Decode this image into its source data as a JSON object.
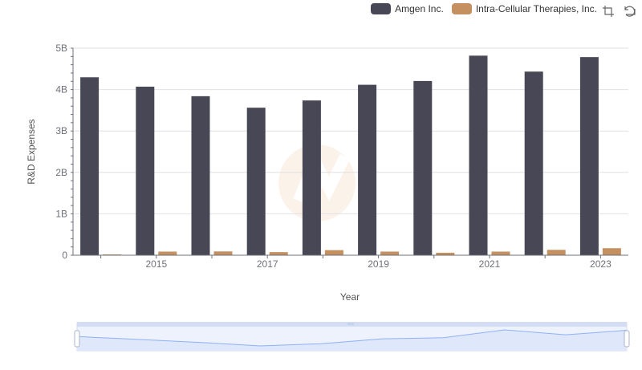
{
  "chart_data": {
    "type": "bar",
    "xlabel": "Year",
    "ylabel": "R&D Expenses",
    "ylim": [
      0,
      5000000000
    ],
    "y_ticks": [
      "0",
      "1B",
      "2B",
      "3B",
      "4B",
      "5B"
    ],
    "x": [
      2014,
      2015,
      2016,
      2017,
      2018,
      2019,
      2020,
      2021,
      2022,
      2023
    ],
    "x_tick_labels": [
      "2015",
      "2017",
      "2019",
      "2021",
      "2023"
    ],
    "legend_position": "top-right",
    "grid": true,
    "series": [
      {
        "name": "Amgen Inc.",
        "color": "#474755",
        "values": [
          4297000000,
          4070000000,
          3840000000,
          3562000000,
          3737000000,
          4116000000,
          4207000000,
          4819000000,
          4434000000,
          4784000000
        ]
      },
      {
        "name": "Intra-Cellular Therapies, Inc.",
        "color": "#c49060",
        "values": [
          20000000,
          88000000,
          92000000,
          75000000,
          123000000,
          88000000,
          60000000,
          88000000,
          130000000,
          170000000
        ]
      }
    ]
  },
  "toolbox": {
    "zoom_icon": "zoom-icon",
    "restore_icon": "restore-icon"
  },
  "colors": {
    "grid": "#e0e0e6",
    "axis": "#6e7079",
    "zoom_fill": "#dfe7fb",
    "zoom_line": "#8fb0f7"
  }
}
